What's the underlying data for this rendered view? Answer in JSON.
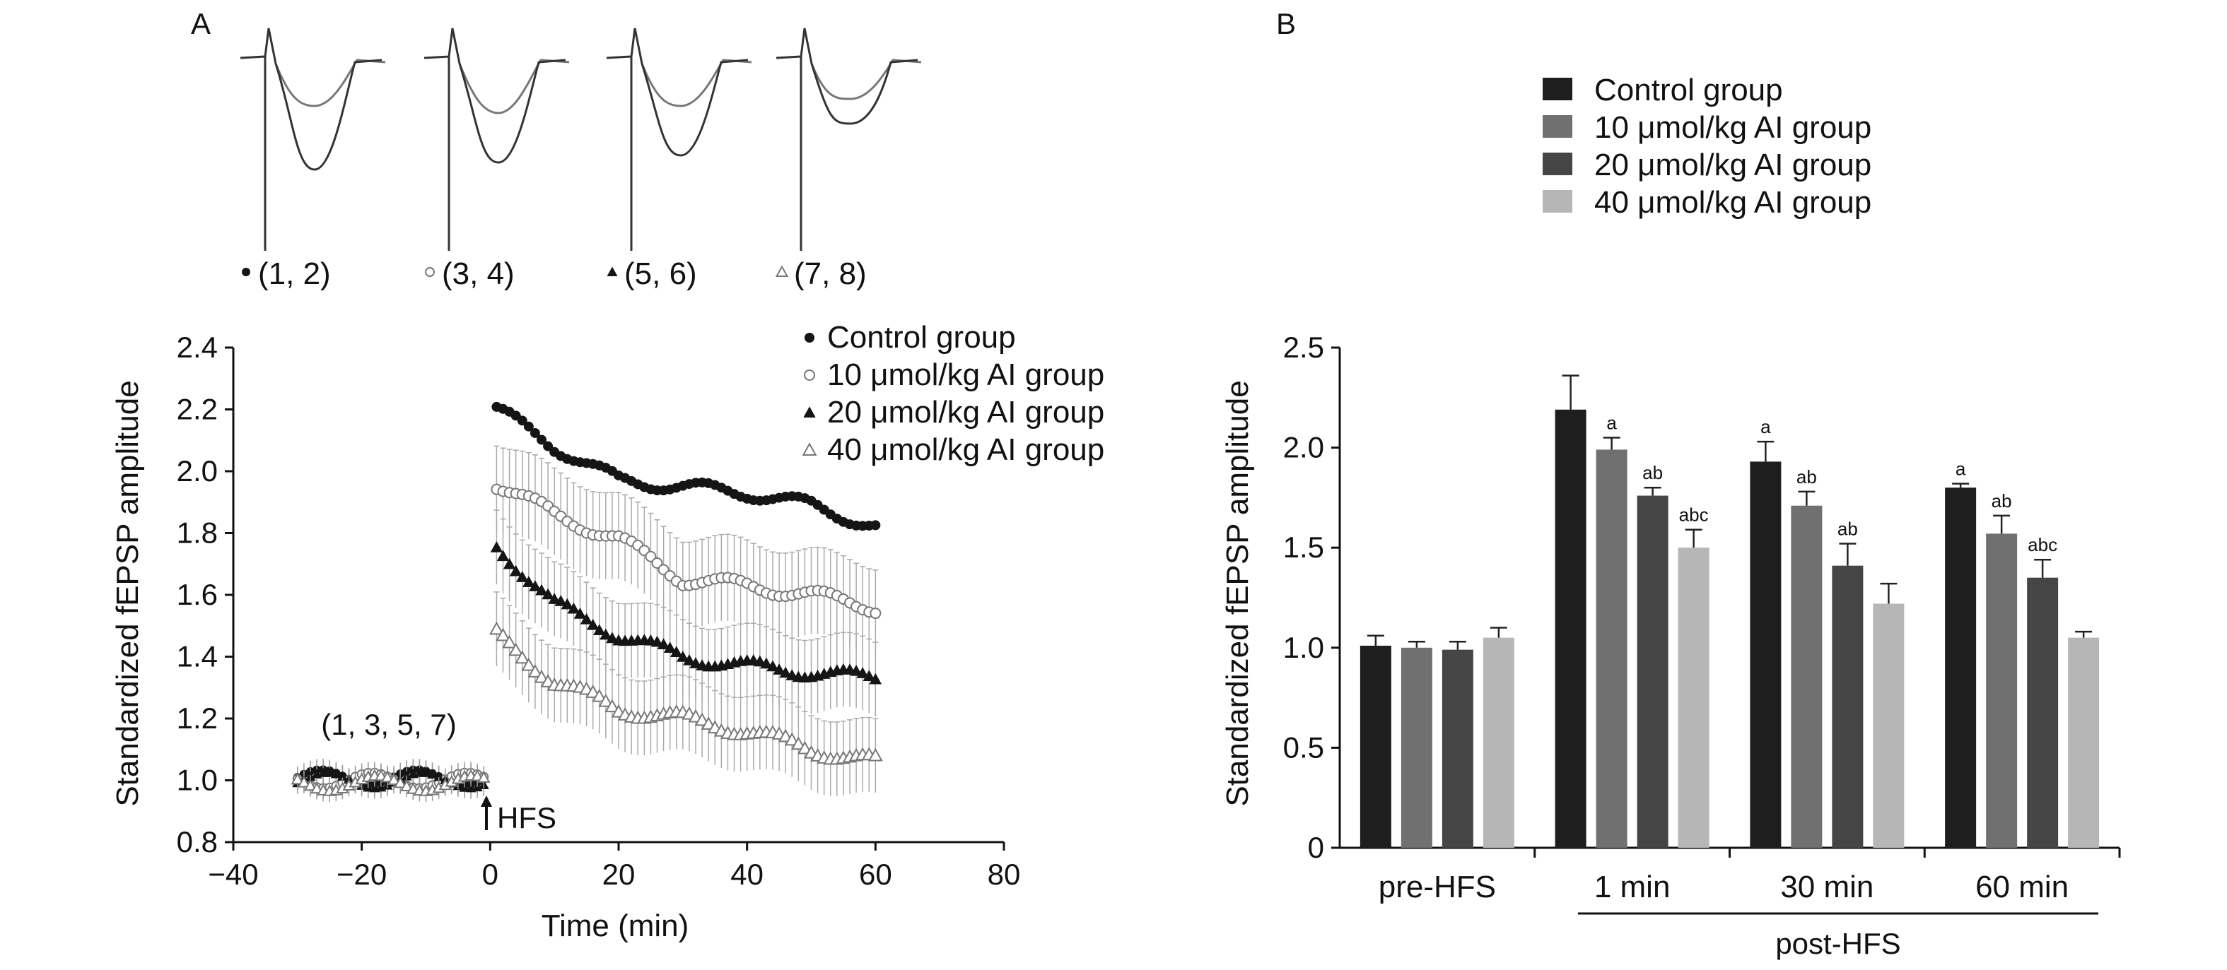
{
  "panels": {
    "a_label": "A",
    "b_label": "B"
  },
  "colors": {
    "control": "#1e1e1e",
    "ai10": "#707070",
    "ai20": "#454545",
    "ai40": "#b6b6b6",
    "axis": "#1a1a1a"
  },
  "traces": [
    {
      "marker": "dot-filled",
      "label": "(1, 2)"
    },
    {
      "marker": "circle-open",
      "label": "(3, 4)"
    },
    {
      "marker": "triangle-filled",
      "label": "(5, 6)"
    },
    {
      "marker": "triangle-open",
      "label": "(7, 8)"
    }
  ],
  "chart_data": [
    {
      "type": "scatter",
      "xlabel": "Time (min)",
      "ylabel": "Standardized fEPSP amplitude",
      "xlim": [
        -40,
        80
      ],
      "ylim": [
        0.8,
        2.4
      ],
      "xticks": [
        "−40",
        "−20",
        "0",
        "20",
        "40",
        "60",
        "80"
      ],
      "yticks": [
        "0.8",
        "1.0",
        "1.2",
        "1.4",
        "1.6",
        "1.8",
        "2.0",
        "2.2",
        "2.4"
      ],
      "legend_position": "top-right",
      "annotations": {
        "baseline": "(1, 3, 5, 7)",
        "hfs": "HFS"
      },
      "series": [
        {
          "name": "Control group",
          "marker": "dot-filled",
          "baseline": {
            "x_start": -30,
            "x_end": -1,
            "step": 1,
            "mean": 1.01
          },
          "post": {
            "x": [
              1,
              10,
              20,
              30,
              40,
              50,
              60
            ],
            "y": [
              2.2,
              2.08,
              1.97,
              1.95,
              1.93,
              1.89,
              1.82
            ]
          },
          "error": 0.02
        },
        {
          "name": "10 μmol/kg AI group",
          "marker": "circle-open",
          "baseline": {
            "x_start": -30,
            "x_end": -1,
            "step": 1,
            "mean": 1.0
          },
          "post": {
            "x": [
              1,
              10,
              20,
              30,
              40,
              50,
              60
            ],
            "y": [
              1.96,
              1.86,
              1.78,
              1.65,
              1.63,
              1.6,
              1.56
            ]
          },
          "error": 0.14
        },
        {
          "name": "20 μmol/kg AI group",
          "marker": "triangle-filled",
          "baseline": {
            "x_start": -30,
            "x_end": -1,
            "step": 1,
            "mean": 1.0
          },
          "post": {
            "x": [
              1,
              10,
              20,
              30,
              40,
              50,
              60
            ],
            "y": [
              1.76,
              1.57,
              1.47,
              1.4,
              1.37,
              1.35,
              1.33
            ]
          },
          "error": 0.12
        },
        {
          "name": "40 μmol/kg AI group",
          "marker": "triangle-open",
          "baseline": {
            "x_start": -30,
            "x_end": -1,
            "step": 1,
            "mean": 0.99
          },
          "post": {
            "x": [
              1,
              10,
              20,
              30,
              40,
              50,
              60
            ],
            "y": [
              1.47,
              1.32,
              1.23,
              1.2,
              1.16,
              1.1,
              1.06
            ]
          },
          "error": 0.12
        }
      ]
    },
    {
      "type": "bar",
      "xlabel": "post-HFS",
      "ylabel": "Standardized fEPSP amplitude",
      "ylim": [
        0,
        2.5
      ],
      "yticks": [
        "0",
        "0.5",
        "1.0",
        "1.5",
        "2.0",
        "2.5"
      ],
      "categories": [
        "pre-HFS",
        "1 min",
        "30 min",
        "60 min"
      ],
      "legend_position": "top",
      "series": [
        {
          "name": "Control group",
          "values": [
            1.01,
            2.19,
            1.93,
            1.8
          ],
          "errors": [
            0.05,
            0.17,
            0.1,
            0.02
          ],
          "labels": [
            "",
            "",
            "a",
            "a"
          ]
        },
        {
          "name": "10 μmol/kg AI group",
          "values": [
            1.0,
            1.99,
            1.71,
            1.57
          ],
          "errors": [
            0.03,
            0.06,
            0.07,
            0.09
          ],
          "labels": [
            "",
            "a",
            "ab",
            "ab"
          ]
        },
        {
          "name": "20 μmol/kg AI group",
          "values": [
            0.99,
            1.76,
            1.41,
            1.35
          ],
          "errors": [
            0.04,
            0.04,
            0.11,
            0.09
          ],
          "labels": [
            "",
            "ab",
            "ab",
            "abc"
          ]
        },
        {
          "name": "40 μmol/kg AI group",
          "values": [
            1.05,
            1.5,
            1.22,
            1.05
          ],
          "errors": [
            0.05,
            0.09,
            0.1,
            0.03
          ],
          "labels": [
            "",
            "abc",
            "",
            ""
          ]
        }
      ]
    }
  ]
}
